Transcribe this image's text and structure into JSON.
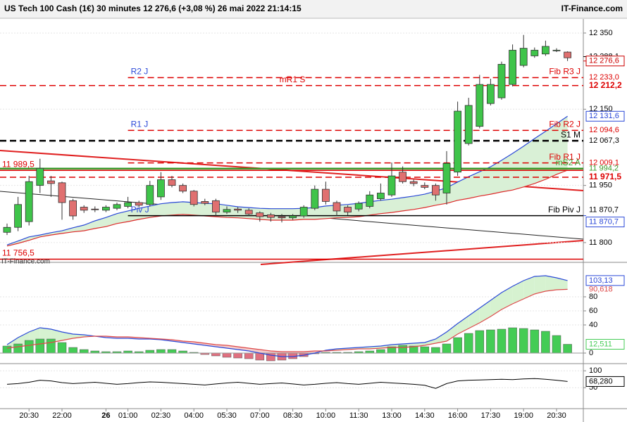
{
  "header": {
    "title": "US Tech 100 Cash (1€) 30 minutes 12 276,6 (+3,08 %) 26 mai 2022 21:14:15",
    "brand": "IT-Finance.com"
  },
  "chart_data": [
    {
      "type": "candlestick",
      "watermark": "IT-Finance.com",
      "categories": [
        null,
        null,
        "20:30",
        null,
        null,
        "22:00",
        null,
        null,
        null,
        "26",
        null,
        "01:00",
        null,
        null,
        "02:30",
        null,
        null,
        "04:00",
        null,
        null,
        "05:30",
        null,
        null,
        "07:00",
        null,
        null,
        "08:30",
        null,
        null,
        "10:00",
        null,
        null,
        "11:30",
        null,
        null,
        "13:00",
        null,
        null,
        "14:30",
        null,
        null,
        "16:00",
        null,
        null,
        "17:30",
        null,
        null,
        "19:00",
        null,
        null,
        "20:30",
        null
      ],
      "open": [
        11827,
        11840,
        11855,
        11950,
        11962,
        11957,
        11910,
        11893,
        11888,
        11885,
        11890,
        11895,
        11905,
        11900,
        11920,
        11965,
        11950,
        11935,
        11908,
        11910,
        11880,
        11888,
        11885,
        11878,
        11873,
        11868,
        11865,
        11870,
        11890,
        11940,
        11905,
        11893,
        11888,
        11895,
        11915,
        11925,
        11985,
        11960,
        11950,
        11950,
        11930,
        11985,
        12060,
        12105,
        12165,
        12180,
        12215,
        12265,
        12290,
        12295,
        12305,
        12300
      ],
      "high": [
        11850,
        11920,
        11975,
        12020,
        11975,
        11960,
        11915,
        11898,
        11895,
        11898,
        11905,
        11920,
        11910,
        11962,
        11985,
        11975,
        11955,
        11938,
        11915,
        11915,
        11895,
        11893,
        11890,
        11882,
        11878,
        11875,
        11875,
        11898,
        11950,
        11960,
        11910,
        11898,
        11908,
        11935,
        11955,
        12010,
        12000,
        11965,
        11958,
        11955,
        12040,
        12170,
        12180,
        12240,
        12230,
        12275,
        12320,
        12345,
        12312,
        12330,
        12310,
        12302
      ],
      "low": [
        11820,
        11830,
        11845,
        11930,
        11920,
        11860,
        11860,
        11878,
        11880,
        11880,
        11885,
        11890,
        11892,
        11895,
        11912,
        11945,
        11930,
        11895,
        11898,
        11870,
        11875,
        11878,
        11870,
        11855,
        11855,
        11853,
        11860,
        11865,
        11885,
        11900,
        11870,
        11872,
        11882,
        11890,
        11910,
        11920,
        11955,
        11948,
        11940,
        11910,
        11900,
        11975,
        12055,
        12100,
        12160,
        12175,
        12210,
        12260,
        12285,
        12290,
        12300,
        12276.6
      ],
      "close": [
        11840,
        11900,
        11960,
        11995,
        11955,
        11905,
        11870,
        11885,
        11887,
        11893,
        11900,
        11905,
        11898,
        11950,
        11965,
        11950,
        11935,
        11900,
        11903,
        11880,
        11887,
        11885,
        11875,
        11868,
        11866,
        11865,
        11870,
        11893,
        11940,
        11908,
        11883,
        11880,
        11903,
        11925,
        11930,
        11975,
        11960,
        11955,
        11945,
        11925,
        12008,
        12145,
        12160,
        12215,
        12215,
        12268,
        12305,
        12310,
        12305,
        12315,
        12305,
        12285
      ],
      "up_color": "#3fc44a",
      "down_color": "#e07070",
      "overlays": [
        {
          "color": "#2a48d8",
          "end_label": "12 131,6",
          "values": [
            11794,
            11804,
            11815,
            11820,
            11826,
            11831,
            11839,
            11846,
            11857,
            11866,
            11876,
            11883,
            11890,
            11896,
            11902,
            11905,
            11907,
            11905,
            11903,
            11902,
            11898,
            11894,
            11892,
            11890,
            11889,
            11889,
            11889,
            11890,
            11892,
            11896,
            11898,
            11900,
            11903,
            11907,
            11911,
            11914,
            11918,
            11922,
            11927,
            11935,
            11944,
            11959,
            11973,
            11986,
            11999,
            12016,
            12034,
            12053,
            12073,
            12092,
            12112,
            12131.6
          ]
        },
        {
          "color": "#dd2a2a",
          "values": [
            11791,
            11798,
            11806,
            11815,
            11820,
            11824,
            11828,
            11831,
            11837,
            11842,
            11850,
            11855,
            11861,
            11866,
            11870,
            11872,
            11874,
            11872,
            11870,
            11868,
            11866,
            11865,
            11863,
            11861,
            11859,
            11859,
            11859,
            11861,
            11861,
            11863,
            11865,
            11866,
            11868,
            11872,
            11876,
            11879,
            11883,
            11887,
            11892,
            11898,
            11903,
            11911,
            11916,
            11922,
            11927,
            11933,
            11938,
            11946,
            11955,
            11966,
            11979,
            11990
          ]
        }
      ],
      "overlay_fill": "#d9f0d6",
      "levels": [
        {
          "value": 12233.0,
          "axis_label": "12 233,0",
          "color": "#dd0000",
          "style": "dashed",
          "span": "day",
          "labels": [
            {
              "text": "Fib R3 J",
              "at": "right"
            },
            {
              "text": "R2 J",
              "at": "start",
              "color": "#2a48d8"
            }
          ]
        },
        {
          "value": 12212.2,
          "axis_label": "12 212,2",
          "color": "#dd0000",
          "style": "dashed",
          "span": "full",
          "bold": true,
          "labels": [
            {
              "text": "mR1 S",
              "at": "center"
            }
          ]
        },
        {
          "value": 12094.6,
          "axis_label": "12 094,6",
          "color": "#dd0000",
          "style": "dashed",
          "span": "day",
          "labels": [
            {
              "text": "Fib R2 J",
              "at": "right"
            },
            {
              "text": "R1 J",
              "at": "start",
              "color": "#2a48d8"
            }
          ]
        },
        {
          "value": 12067.3,
          "axis_label": "12 067,3",
          "color": "#000000",
          "style": "dashed",
          "span": "full",
          "thick": true,
          "labels": [
            {
              "text": "S1 M",
              "at": "right"
            }
          ]
        },
        {
          "value": 12009.1,
          "axis_label": "12 009,1",
          "color": "#dd0000",
          "style": "dashed",
          "span": "day",
          "labels": [
            {
              "text": "Fib R1 J",
              "at": "right"
            }
          ]
        },
        {
          "value": 11994.2,
          "axis_label": "11 994,2",
          "color": "#3a9a2a",
          "style": "solid",
          "span": "full",
          "thick": true,
          "labels": [
            {
              "text": "mS2 A",
              "at": "right"
            }
          ]
        },
        {
          "value": 11989.5,
          "color": "#dd0000",
          "style": "solid",
          "span": "full",
          "labels": [
            {
              "text": "11 989,5",
              "at": "left"
            }
          ]
        },
        {
          "value": 11971.5,
          "axis_label": "11 971,5",
          "color": "#dd0000",
          "style": "dashed",
          "span": "full",
          "bold": true,
          "labels": []
        },
        {
          "value": 11870.7,
          "axis_label": "11 870,7",
          "color": "#000000",
          "style": "solid",
          "span": "day",
          "labels": [
            {
              "text": "Fib Piv J",
              "at": "right"
            },
            {
              "text": "Piv J",
              "at": "start",
              "color": "#2a48d8"
            }
          ]
        },
        {
          "value": 11756.5,
          "color": "#dd0000",
          "style": "solid",
          "span": "full",
          "labels": [
            {
              "text": "11 756,5",
              "at": "left"
            }
          ]
        }
      ],
      "price_labels": [
        {
          "value": 12288.1,
          "label": "12 288,1",
          "color": "#000000"
        },
        {
          "value": 12276.6,
          "label": "12 276,6",
          "color": "#cc0000",
          "box": true
        },
        {
          "value": 11870.7,
          "label": "11 870,7",
          "color": "#2a48d8",
          "box": true
        }
      ],
      "ylim": [
        11750,
        12385
      ],
      "yticks": [
        {
          "value": 12350,
          "label": "12 350"
        },
        {
          "value": 12150,
          "label": "12 150"
        },
        {
          "value": 11950,
          "label": "11 950"
        },
        {
          "value": 11800,
          "label": "11 800"
        }
      ],
      "grid": true
    },
    {
      "type": "bar",
      "values": [
        10,
        13,
        18,
        20,
        20,
        15,
        8,
        5,
        3,
        2,
        2,
        3,
        2,
        4,
        5,
        5,
        3,
        1,
        -2,
        -4,
        -6,
        -7,
        -8,
        -10,
        -11,
        -10,
        -8,
        -5,
        -1,
        1,
        1,
        1,
        2,
        3,
        5,
        9,
        11,
        10,
        9,
        8,
        13,
        22,
        28,
        32,
        33,
        34,
        36,
        35,
        33,
        31,
        25,
        12.511
      ],
      "value_label": "12,511",
      "up_color": "#44cc55",
      "down_color": "#e07080",
      "series": [
        {
          "color": "#2a48d8",
          "end_label": "103,13",
          "values": [
            12,
            22,
            30,
            36,
            34,
            30,
            27,
            26,
            24,
            22,
            21,
            21,
            20,
            20,
            19,
            17,
            15,
            13,
            11,
            9,
            7,
            5,
            3,
            0,
            -3,
            -5,
            -5,
            -3,
            0,
            4,
            6,
            7,
            8,
            9,
            10,
            12,
            13,
            14,
            15,
            20,
            30,
            42,
            53,
            64,
            75,
            86,
            95,
            103,
            109,
            110,
            107,
            103.13
          ]
        },
        {
          "color": "#dd4a4a",
          "end_label": "90,618",
          "values": [
            7,
            9,
            11,
            13,
            15,
            18,
            21,
            23,
            24,
            24,
            23,
            23,
            22,
            21,
            20,
            19,
            17,
            16,
            14,
            12,
            11,
            9,
            7,
            5,
            3,
            2,
            2,
            2,
            3,
            3,
            4,
            5,
            6,
            6,
            7,
            8,
            8,
            9,
            11,
            14,
            17,
            27,
            35,
            43,
            52,
            62,
            70,
            77,
            84,
            88,
            90,
            90.618
          ]
        }
      ],
      "fill_up": "#d6f2d0",
      "fill_down": "#f4cccc",
      "ylim": [
        -13,
        127
      ],
      "yticks": [
        0,
        40,
        60,
        80
      ],
      "grid": true
    },
    {
      "type": "line",
      "series": [
        {
          "color": "#000000",
          "end_label": "68,280",
          "values": [
            60,
            62,
            66,
            72,
            70,
            65,
            62,
            64,
            66,
            63,
            60,
            62,
            65,
            67,
            66,
            64,
            62,
            60,
            58,
            61,
            64,
            66,
            63,
            60,
            62,
            64,
            61,
            58,
            60,
            63,
            65,
            62,
            60,
            63,
            66,
            64,
            62,
            60,
            57,
            48,
            62,
            70,
            72,
            73,
            74,
            75,
            74,
            76,
            77,
            75,
            72,
            68.28
          ]
        }
      ],
      "ylim": [
        -10,
        115
      ],
      "yticks": [
        100,
        50
      ],
      "grid": true
    }
  ]
}
